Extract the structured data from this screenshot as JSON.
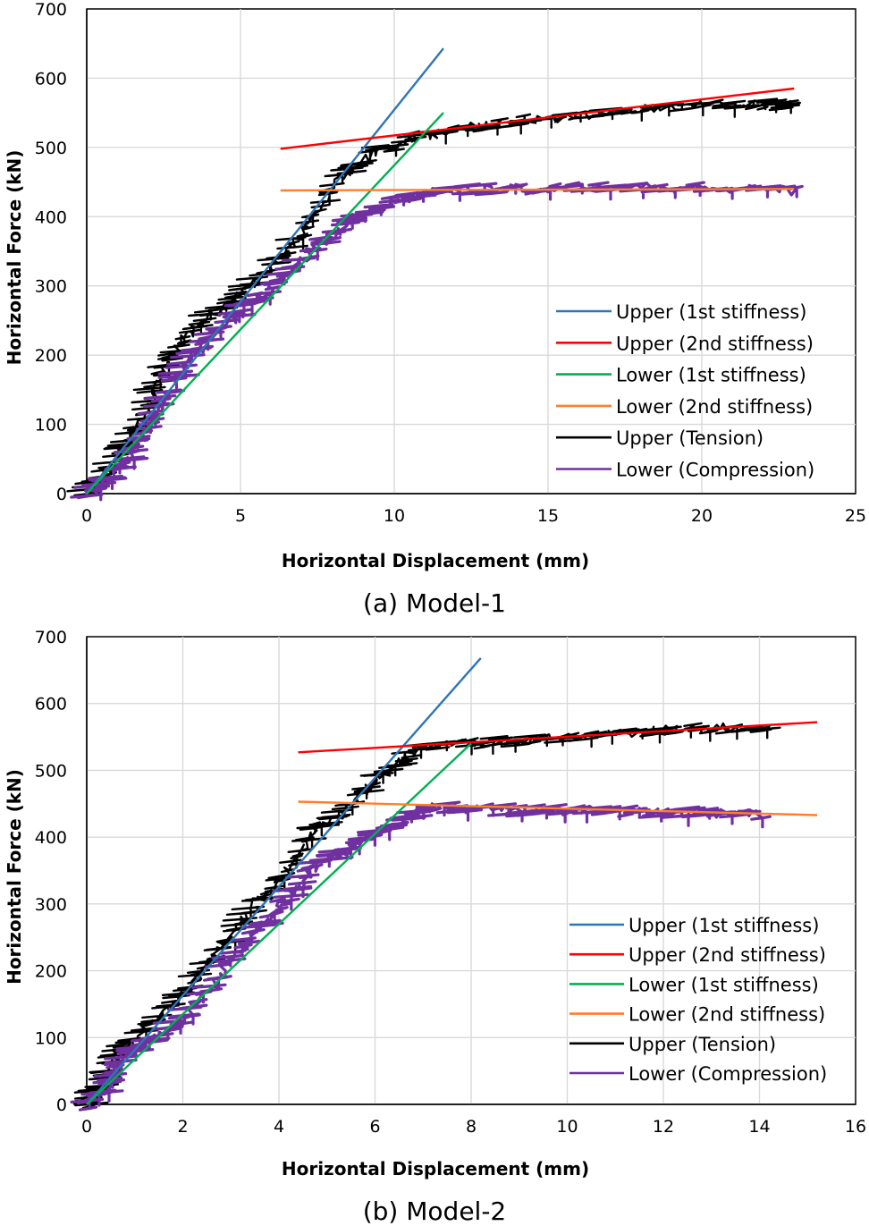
{
  "chart_data": [
    {
      "type": "line",
      "caption": "(a) Model-1",
      "xlabel": "Horizontal Displacement (mm)",
      "ylabel": "Horizontal Force (kN)",
      "xlim": [
        0,
        25
      ],
      "ylim": [
        0,
        700
      ],
      "xticks": [
        0,
        5,
        10,
        15,
        20,
        25
      ],
      "yticks": [
        0,
        100,
        200,
        300,
        400,
        500,
        600,
        700
      ],
      "grid": true,
      "legend_position": "lower-right",
      "series": [
        {
          "name": "Upper (1st stiffness)",
          "color": "#2e75b6",
          "kind": "line",
          "points": [
            [
              0,
              0
            ],
            [
              11.6,
              643
            ]
          ]
        },
        {
          "name": "Upper (2nd stiffness)",
          "color": "#ff0000",
          "kind": "line",
          "points": [
            [
              6.3,
              498
            ],
            [
              23.0,
              585
            ]
          ]
        },
        {
          "name": "Lower (1st stiffness)",
          "color": "#00b050",
          "kind": "line",
          "points": [
            [
              0,
              0
            ],
            [
              11.6,
              550
            ]
          ]
        },
        {
          "name": "Lower (2nd stiffness)",
          "color": "#ff7f27",
          "kind": "line",
          "points": [
            [
              6.3,
              438
            ],
            [
              23.0,
              440
            ]
          ]
        },
        {
          "name": "Upper (Tension)",
          "color": "#000000",
          "kind": "noisy",
          "points": [
            [
              0,
              0
            ],
            [
              0.5,
              25
            ],
            [
              1.2,
              65
            ],
            [
              1.8,
              105
            ],
            [
              2.3,
              160
            ],
            [
              2.8,
              205
            ],
            [
              3.6,
              245
            ],
            [
              4.6,
              275
            ],
            [
              5.5,
              305
            ],
            [
              6.5,
              345
            ],
            [
              7.3,
              395
            ],
            [
              8.2,
              455
            ],
            [
              9.2,
              490
            ],
            [
              10.8,
              515
            ],
            [
              12.5,
              530
            ],
            [
              14.0,
              538
            ],
            [
              16.0,
              545
            ],
            [
              18.0,
              555
            ],
            [
              20.0,
              560
            ],
            [
              22.0,
              562
            ],
            [
              23.0,
              562
            ]
          ]
        },
        {
          "name": "Lower (Compression)",
          "color": "#7030a0",
          "kind": "noisy",
          "points": [
            [
              0,
              0
            ],
            [
              0.7,
              20
            ],
            [
              1.4,
              55
            ],
            [
              2.0,
              95
            ],
            [
              2.6,
              140
            ],
            [
              3.4,
              195
            ],
            [
              4.4,
              240
            ],
            [
              5.4,
              275
            ],
            [
              6.4,
              310
            ],
            [
              7.4,
              355
            ],
            [
              8.5,
              390
            ],
            [
              9.5,
              415
            ],
            [
              11.0,
              435
            ],
            [
              13.0,
              440
            ],
            [
              15.0,
              440
            ],
            [
              17.0,
              442
            ],
            [
              19.0,
              442
            ],
            [
              21.0,
              440
            ],
            [
              23.0,
              438
            ]
          ]
        }
      ]
    },
    {
      "type": "line",
      "caption": "(b) Model-2",
      "xlabel": "Horizontal Displacement (mm)",
      "ylabel": "Horizontal Force (kN)",
      "xlim": [
        0,
        16
      ],
      "ylim": [
        0,
        700
      ],
      "xticks": [
        0,
        2,
        4,
        6,
        8,
        10,
        12,
        14,
        16
      ],
      "yticks": [
        0,
        100,
        200,
        300,
        400,
        500,
        600,
        700
      ],
      "grid": true,
      "legend_position": "lower-right",
      "series": [
        {
          "name": "Upper (1st stiffness)",
          "color": "#2e75b6",
          "kind": "line",
          "points": [
            [
              0,
              0
            ],
            [
              8.2,
              668
            ]
          ]
        },
        {
          "name": "Upper (2nd stiffness)",
          "color": "#ff0000",
          "kind": "line",
          "points": [
            [
              4.4,
              527
            ],
            [
              15.2,
              572
            ]
          ]
        },
        {
          "name": "Lower (1st stiffness)",
          "color": "#00b050",
          "kind": "line",
          "points": [
            [
              0,
              0
            ],
            [
              8.0,
              540
            ]
          ]
        },
        {
          "name": "Lower (2nd stiffness)",
          "color": "#ff7f27",
          "kind": "line",
          "points": [
            [
              4.4,
              453
            ],
            [
              15.2,
              433
            ]
          ]
        },
        {
          "name": "Upper (Tension)",
          "color": "#000000",
          "kind": "noisy",
          "points": [
            [
              0,
              0
            ],
            [
              0.3,
              25
            ],
            [
              0.6,
              75
            ],
            [
              1.2,
              110
            ],
            [
              1.9,
              155
            ],
            [
              2.4,
              200
            ],
            [
              3.0,
              250
            ],
            [
              3.5,
              300
            ],
            [
              4.1,
              340
            ],
            [
              4.6,
              400
            ],
            [
              5.2,
              430
            ],
            [
              5.8,
              470
            ],
            [
              6.4,
              510
            ],
            [
              7.0,
              535
            ],
            [
              8.0,
              540
            ],
            [
              9.0,
              545
            ],
            [
              10.0,
              548
            ],
            [
              11.0,
              555
            ],
            [
              12.0,
              560
            ],
            [
              13.0,
              563
            ],
            [
              14.2,
              565
            ]
          ]
        },
        {
          "name": "Lower (Compression)",
          "color": "#7030a0",
          "kind": "noisy",
          "points": [
            [
              0,
              0
            ],
            [
              0.4,
              25
            ],
            [
              0.7,
              65
            ],
            [
              1.3,
              95
            ],
            [
              1.9,
              120
            ],
            [
              2.4,
              160
            ],
            [
              3.0,
              215
            ],
            [
              3.6,
              265
            ],
            [
              4.2,
              310
            ],
            [
              4.7,
              350
            ],
            [
              5.4,
              380
            ],
            [
              6.0,
              405
            ],
            [
              6.6,
              425
            ],
            [
              7.0,
              445
            ],
            [
              8.0,
              443
            ],
            [
              9.0,
              440
            ],
            [
              10.0,
              440
            ],
            [
              11.0,
              440
            ],
            [
              12.0,
              438
            ],
            [
              13.0,
              436
            ],
            [
              14.0,
              434
            ]
          ]
        }
      ]
    }
  ]
}
